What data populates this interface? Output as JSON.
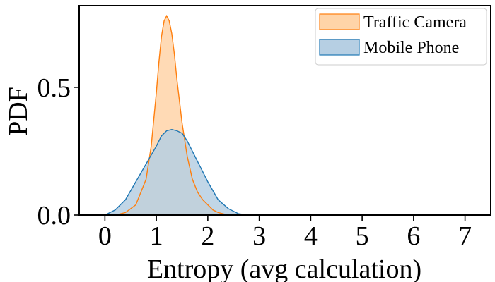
{
  "chart_data": {
    "type": "area",
    "xlabel": "Entropy (avg calculation)",
    "ylabel": "PDF",
    "xlim": [
      -0.5,
      7.5
    ],
    "ylim": [
      0.0,
      0.82
    ],
    "x_ticks": [
      0,
      1,
      2,
      3,
      4,
      5,
      6,
      7
    ],
    "y_ticks": [
      0.0,
      0.5
    ],
    "y_tick_labels": [
      "0.0",
      "0.5"
    ],
    "grid": false,
    "legend_position": "top-right",
    "series": [
      {
        "name": "Traffic Camera",
        "color": "#ff7f0e",
        "fill": "#ffd4a8",
        "x": [
          0.2,
          0.4,
          0.6,
          0.8,
          0.9,
          1.0,
          1.05,
          1.1,
          1.15,
          1.2,
          1.25,
          1.3,
          1.35,
          1.4,
          1.5,
          1.6,
          1.7,
          1.8,
          1.9,
          2.0,
          2.1,
          2.2,
          2.4
        ],
        "y": [
          0.0,
          0.01,
          0.04,
          0.14,
          0.27,
          0.48,
          0.6,
          0.7,
          0.76,
          0.78,
          0.76,
          0.71,
          0.63,
          0.53,
          0.36,
          0.23,
          0.14,
          0.09,
          0.06,
          0.04,
          0.02,
          0.01,
          0.0
        ]
      },
      {
        "name": "Mobile Phone",
        "color": "#1f77b4",
        "fill": "#b6cfe3",
        "x": [
          0.0,
          0.2,
          0.4,
          0.6,
          0.8,
          1.0,
          1.1,
          1.2,
          1.3,
          1.4,
          1.5,
          1.6,
          1.8,
          2.0,
          2.2,
          2.4,
          2.6,
          2.8
        ],
        "y": [
          0.0,
          0.02,
          0.06,
          0.13,
          0.2,
          0.27,
          0.31,
          0.33,
          0.335,
          0.33,
          0.32,
          0.29,
          0.21,
          0.13,
          0.06,
          0.025,
          0.005,
          0.0
        ]
      }
    ]
  }
}
